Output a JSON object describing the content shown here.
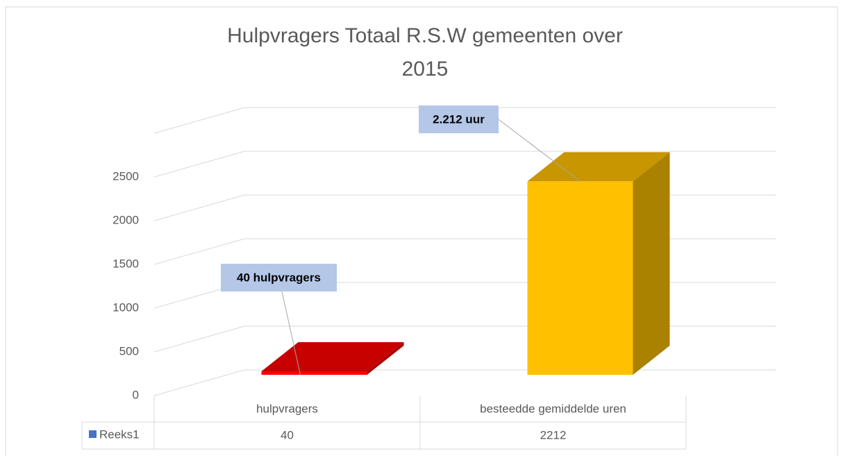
{
  "chart_data": {
    "type": "bar3d",
    "title": "Hulpvragers Totaal R.S.W gemeenten over 2015",
    "categories": [
      "hulpvragers",
      "besteedde gemiddelde uren"
    ],
    "series": [
      {
        "name": "Reeks1",
        "color": "#4472c4",
        "values": [
          40,
          2212
        ],
        "value_labels": [
          "40 hulpvragers",
          "2.212 uur"
        ],
        "point_colors": [
          "#ff0000",
          "#ffc000"
        ]
      }
    ],
    "ylim": [
      0,
      3000
    ],
    "yticks": [
      0,
      500,
      1000,
      1500,
      2000,
      2500
    ],
    "grid": true,
    "data_table": true
  }
}
